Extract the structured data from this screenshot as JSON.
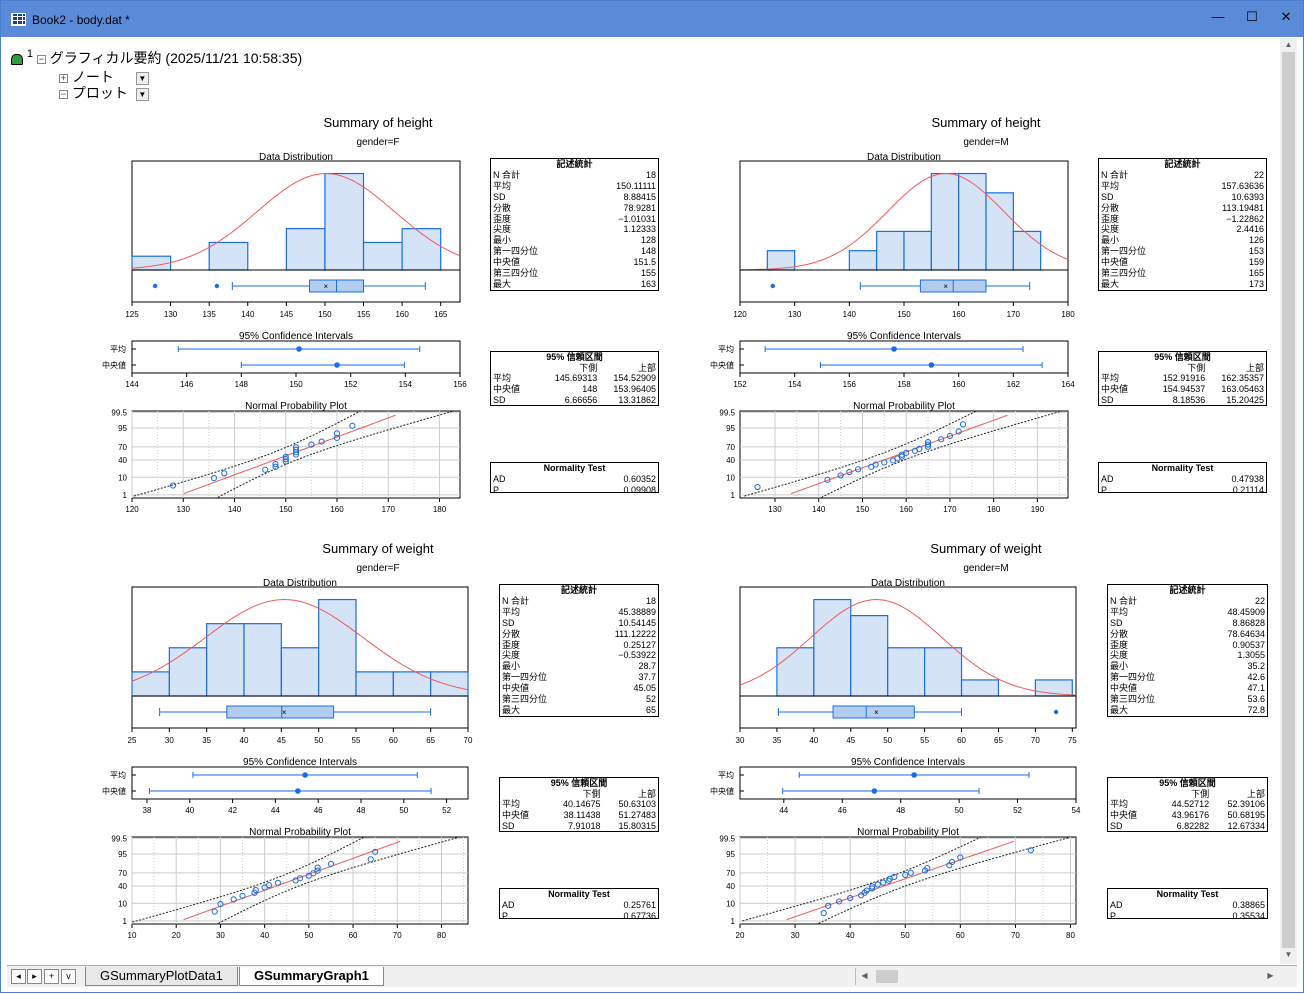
{
  "window": {
    "title": "Book2 - body.dat *",
    "minimize": "—",
    "maximize": "☐",
    "close": "✕"
  },
  "tree": {
    "index": "1",
    "title": "グラフィカル要約 (2025/11/21 10:58:35)",
    "items": [
      {
        "label": "ノート",
        "toggle": "+"
      },
      {
        "label": "プロット",
        "toggle": "−"
      }
    ]
  },
  "tabs": [
    {
      "label": "GSummaryPlotData1"
    },
    {
      "label": "GSummaryGraph1",
      "active": true
    }
  ],
  "nav": {
    "first": "◂",
    "last": "▸",
    "add": "+",
    "list": "v"
  },
  "labels": {
    "data_distribution": "Data Distribution",
    "ci_title": "95% Confidence Intervals",
    "prob_title": "Normal Probability Plot",
    "stats_header": "記述統計",
    "ci_header": "95% 信頼区間",
    "ci_lower": "下側",
    "ci_upper": "上部",
    "norm_header": "Normality Test",
    "ci_mean": "平均",
    "ci_median": "中央値"
  },
  "stat_labels": [
    "N 合計",
    "平均",
    "SD",
    "分散",
    "歪度",
    "尖度",
    "最小",
    "第一四分位",
    "中央値",
    "第三四分位",
    "最大"
  ],
  "ci_row_labels": [
    "平均",
    "中央値",
    "SD"
  ],
  "norm_labels": [
    "AD",
    "P"
  ],
  "colors": {
    "bar_fill": "#d5e3f6",
    "blue": "#1a6ee0",
    "red": "#f05a5a",
    "titlebar": "#5b8bd8"
  },
  "chart_data": [
    {
      "type": "histogram",
      "title": "Summary of height",
      "subtitle": "gender=F",
      "hist": {
        "start": 125,
        "width": 5,
        "counts": [
          1,
          0,
          2,
          0,
          3,
          7,
          2,
          3
        ],
        "xlim": [
          125,
          167.5
        ],
        "xticks": [
          "125",
          "130",
          "135",
          "140",
          "145",
          "150",
          "155",
          "160",
          "165"
        ],
        "mean": 150.11111,
        "sd": 8.88415
      },
      "box": {
        "whisker": [
          138,
          163
        ],
        "q1": 148,
        "median": 151.5,
        "q3": 155,
        "mean": 150.11111,
        "outliers": [
          128,
          136
        ]
      },
      "ci": {
        "mean": [
          145.69313,
          150.11111,
          154.52909
        ],
        "median": [
          148,
          151.5,
          153.96405
        ],
        "xlim": [
          144,
          156
        ],
        "xticks": [
          "144",
          "146",
          "148",
          "150",
          "152",
          "154",
          "156"
        ]
      },
      "prob": {
        "values": [
          128,
          136,
          138,
          146,
          148,
          148,
          150,
          150,
          150,
          152,
          152,
          152,
          152,
          155,
          157,
          160,
          160,
          163
        ],
        "xlim": [
          120,
          184
        ],
        "xticks": [
          "120",
          "130",
          "140",
          "150",
          "160",
          "170",
          "180"
        ],
        "yticks": [
          "1",
          "10",
          "40",
          "70",
          "95",
          "99.5"
        ]
      },
      "stats": [
        "18",
        "150.11111",
        "8.88415",
        "78.9281",
        "−1.01031",
        "1.12333",
        "128",
        "148",
        "151.5",
        "155",
        "163"
      ],
      "ci_table": [
        [
          "145.69313",
          "154.52909"
        ],
        [
          "148",
          "153.96405"
        ],
        [
          "6.66656",
          "13.31862"
        ]
      ],
      "normality": [
        "0.60352",
        "0.09908"
      ]
    },
    {
      "type": "histogram",
      "title": "Summary of height",
      "subtitle": "gender=M",
      "hist": {
        "start": 125,
        "width": 5,
        "counts": [
          1,
          0,
          0,
          1,
          2,
          2,
          5,
          5,
          4,
          2
        ],
        "xlim": [
          120,
          180
        ],
        "xticks": [
          "120",
          "130",
          "140",
          "150",
          "160",
          "170",
          "180"
        ],
        "mean": 157.63636,
        "sd": 10.6393
      },
      "box": {
        "whisker": [
          142,
          173
        ],
        "q1": 153,
        "median": 159,
        "q3": 165,
        "mean": 157.63636,
        "outliers": [
          126
        ]
      },
      "ci": {
        "mean": [
          152.91916,
          157.63636,
          162.35357
        ],
        "median": [
          154.94537,
          159,
          163.05463
        ],
        "xlim": [
          152,
          164
        ],
        "xticks": [
          "152",
          "154",
          "156",
          "158",
          "160",
          "162",
          "164"
        ]
      },
      "prob": {
        "values": [
          126,
          142,
          145,
          147,
          149,
          152,
          153,
          155,
          157,
          158,
          159,
          159,
          160,
          162,
          163,
          165,
          165,
          165,
          168,
          170,
          172,
          173
        ],
        "xlim": [
          122,
          197
        ],
        "xticks": [
          "130",
          "140",
          "150",
          "160",
          "170",
          "180",
          "190"
        ],
        "yticks": [
          "1",
          "10",
          "40",
          "70",
          "95",
          "99.5"
        ]
      },
      "stats": [
        "22",
        "157.63636",
        "10.6393",
        "113.19481",
        "−1.22862",
        "2.4416",
        "126",
        "153",
        "159",
        "165",
        "173"
      ],
      "ci_table": [
        [
          "152.91916",
          "162.35357"
        ],
        [
          "154.94537",
          "163.05463"
        ],
        [
          "8.18536",
          "15.20425"
        ]
      ],
      "normality": [
        "0.47938",
        "0.21114"
      ]
    },
    {
      "type": "histogram",
      "title": "Summary of weight",
      "subtitle": "gender=F",
      "hist": {
        "start": 25,
        "width": 5,
        "counts": [
          1,
          2,
          3,
          3,
          2,
          4,
          1,
          1,
          1
        ],
        "xlim": [
          25,
          70
        ],
        "xticks": [
          "25",
          "30",
          "35",
          "40",
          "45",
          "50",
          "55",
          "60",
          "65",
          "70"
        ],
        "mean": 45.38889,
        "sd": 10.54145
      },
      "box": {
        "whisker": [
          28.7,
          65
        ],
        "q1": 37.7,
        "median": 45.05,
        "q3": 52,
        "mean": 45.38889,
        "outliers": []
      },
      "ci": {
        "mean": [
          40.14675,
          45.38889,
          50.63103
        ],
        "median": [
          38.11438,
          45.05,
          51.27483
        ],
        "xlim": [
          37.3,
          53
        ],
        "xticks": [
          "38",
          "40",
          "42",
          "44",
          "46",
          "48",
          "50",
          "52"
        ]
      },
      "prob": {
        "values": [
          28.7,
          30,
          33,
          35,
          37.7,
          38,
          40,
          41,
          43,
          47,
          48,
          50,
          51,
          52,
          52,
          55,
          64,
          65
        ],
        "xlim": [
          10,
          86
        ],
        "xticks": [
          "10",
          "20",
          "30",
          "40",
          "50",
          "60",
          "70",
          "80"
        ],
        "yticks": [
          "1",
          "10",
          "40",
          "70",
          "95",
          "99.5"
        ]
      },
      "stats": [
        "18",
        "45.38889",
        "10.54145",
        "111.12222",
        "0.25127",
        "−0.53922",
        "28.7",
        "37.7",
        "45.05",
        "52",
        "65"
      ],
      "ci_table": [
        [
          "40.14675",
          "50.63103"
        ],
        [
          "38.11438",
          "51.27483"
        ],
        [
          "7.91018",
          "15.80315"
        ]
      ],
      "normality": [
        "0.25761",
        "0.67736"
      ]
    },
    {
      "type": "histogram",
      "title": "Summary of weight",
      "subtitle": "gender=M",
      "hist": {
        "start": 30,
        "width": 5,
        "counts": [
          0,
          3,
          6,
          5,
          3,
          3,
          1,
          0,
          1
        ],
        "xlim": [
          30,
          75.5
        ],
        "xticks": [
          "30",
          "35",
          "40",
          "45",
          "50",
          "55",
          "60",
          "65",
          "70",
          "75"
        ],
        "mean": 48.45909,
        "sd": 8.86828
      },
      "box": {
        "whisker": [
          35.2,
          60
        ],
        "q1": 42.6,
        "median": 47.1,
        "q3": 53.6,
        "mean": 48.45909,
        "outliers": [
          72.8
        ]
      },
      "ci": {
        "mean": [
          44.52712,
          48.45909,
          52.39106
        ],
        "median": [
          43.96176,
          47.1,
          50.68195
        ],
        "xlim": [
          42.5,
          54
        ],
        "xticks": [
          "44",
          "46",
          "48",
          "50",
          "52",
          "54"
        ]
      },
      "prob": {
        "values": [
          35.2,
          36,
          38,
          40,
          42,
          42.6,
          43,
          44,
          44,
          45,
          46,
          47,
          47.2,
          48,
          50,
          51,
          53.6,
          54,
          58,
          58.5,
          60,
          72.8
        ],
        "xlim": [
          20,
          81
        ],
        "xticks": [
          "20",
          "30",
          "40",
          "50",
          "60",
          "70",
          "80"
        ],
        "yticks": [
          "1",
          "10",
          "40",
          "70",
          "95",
          "99.5"
        ]
      },
      "stats": [
        "22",
        "48.45909",
        "8.86828",
        "78.64634",
        "0.90537",
        "1.3055",
        "35.2",
        "42.6",
        "47.1",
        "53.6",
        "72.8"
      ],
      "ci_table": [
        [
          "44.52712",
          "52.39106"
        ],
        [
          "43.96176",
          "50.68195"
        ],
        [
          "6.82282",
          "12.67334"
        ]
      ],
      "normality": [
        "0.38865",
        "0.35534"
      ]
    }
  ]
}
